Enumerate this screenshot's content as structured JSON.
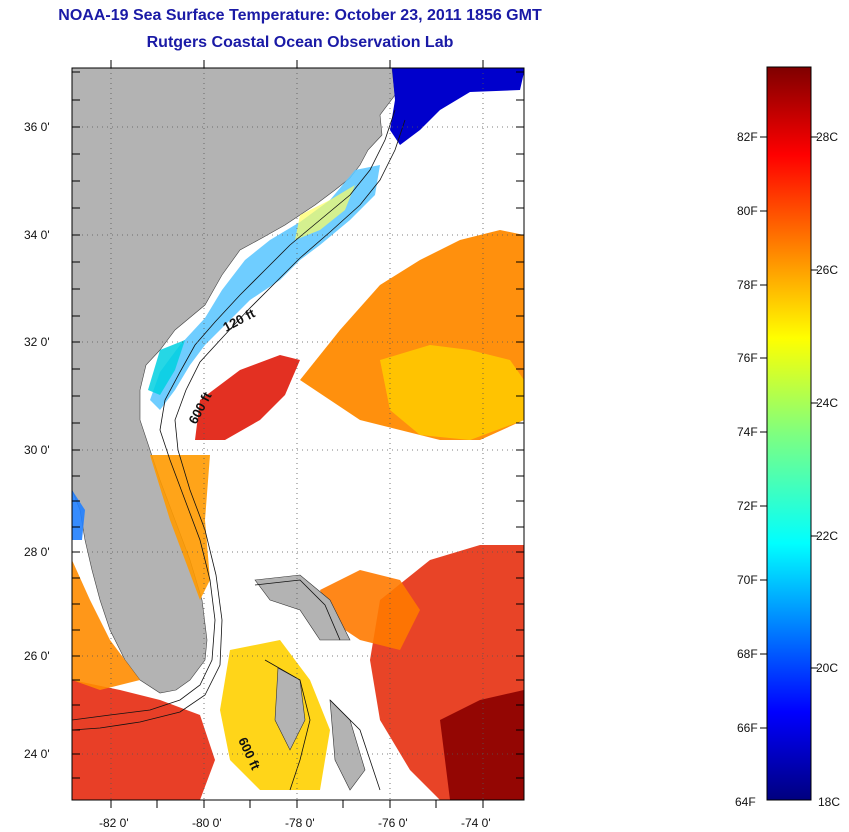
{
  "title": {
    "line1": "NOAA-19 Sea Surface Temperature:  October 23, 2011 1856 GMT",
    "line2": "Rutgers Coastal Ocean Observation Lab"
  },
  "map": {
    "lat_ticks": [
      "36 0'",
      "34 0'",
      "32 0'",
      "30 0'",
      "28 0'",
      "26 0'",
      "24 0'"
    ],
    "lon_ticks": [
      "-82 0'",
      "-80 0'",
      "-78 0'",
      "-76 0'",
      "-74 0'"
    ],
    "lat_range": [
      23.0,
      37.0
    ],
    "lon_range": [
      -83.0,
      -73.0
    ],
    "contour_labels": [
      "120 ft",
      "600 ft",
      "600 ft"
    ]
  },
  "colorbar": {
    "f_labels": [
      "82F",
      "80F",
      "78F",
      "76F",
      "74F",
      "72F",
      "70F",
      "68F",
      "66F",
      "64F"
    ],
    "c_labels": [
      "28C",
      "26C",
      "24C",
      "22C",
      "20C",
      "18C"
    ]
  },
  "colors": {
    "land": "#b3b3b3",
    "title": "#1a1aa6"
  }
}
